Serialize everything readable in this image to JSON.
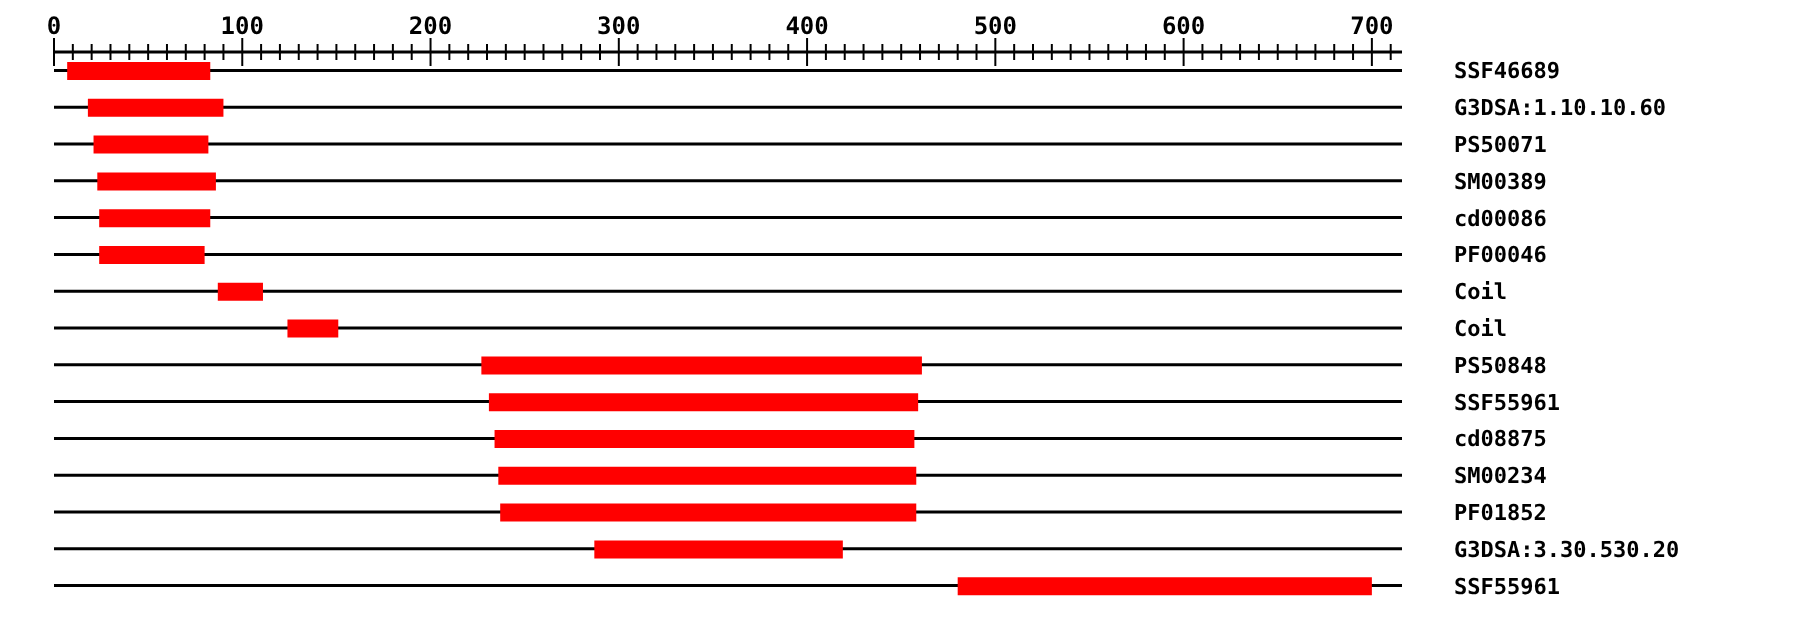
{
  "chart_data": {
    "type": "bar",
    "orientation": "horizontal",
    "color": "#ff0000",
    "grid": "y",
    "categories": [
      "SSF46689",
      "G3DSA:1.10.10.60",
      "PS50071",
      "SM00389",
      "cd00086",
      "PF00046",
      "Coil",
      "Coil",
      "PS50848",
      "SSF55961",
      "cd08875",
      "SM00234",
      "PF01852",
      "G3DSA:3.30.530.20",
      "SSF55961"
    ],
    "base": [
      7,
      18,
      21,
      23,
      24,
      24,
      87,
      124,
      227,
      231,
      234,
      236,
      237,
      287,
      480
    ],
    "values": [
      76,
      72,
      61,
      63,
      59,
      56,
      24,
      27,
      234,
      228,
      223,
      222,
      221,
      132,
      220
    ],
    "xlim": [
      0,
      716
    ],
    "xticks": [
      0,
      {
        "value": 10,
        "label": null
      },
      {
        "value": 20,
        "label": null
      },
      {
        "value": 30,
        "label": null
      },
      {
        "value": 40,
        "label": null
      },
      {
        "value": 50,
        "label": null
      },
      {
        "value": 60,
        "label": null
      },
      {
        "value": 70,
        "label": null
      },
      {
        "value": 80,
        "label": null
      },
      {
        "value": 90,
        "label": null
      },
      100,
      {
        "value": 110,
        "label": null
      },
      {
        "value": 120,
        "label": null
      },
      {
        "value": 130,
        "label": null
      },
      {
        "value": 140,
        "label": null
      },
      {
        "value": 150,
        "label": null
      },
      {
        "value": 160,
        "label": null
      },
      {
        "value": 170,
        "label": null
      },
      {
        "value": 180,
        "label": null
      },
      {
        "value": 190,
        "label": null
      },
      200,
      {
        "value": 210,
        "label": null
      },
      {
        "value": 220,
        "label": null
      },
      {
        "value": 230,
        "label": null
      },
      {
        "value": 240,
        "label": null
      },
      {
        "value": 250,
        "label": null
      },
      {
        "value": 260,
        "label": null
      },
      {
        "value": 270,
        "label": null
      },
      {
        "value": 280,
        "label": null
      },
      {
        "value": 290,
        "label": null
      },
      300,
      {
        "value": 310,
        "label": null
      },
      {
        "value": 320,
        "label": null
      },
      {
        "value": 330,
        "label": null
      },
      {
        "value": 340,
        "label": null
      },
      {
        "value": 350,
        "label": null
      },
      {
        "value": 360,
        "label": null
      },
      {
        "value": 370,
        "label": null
      },
      {
        "value": 380,
        "label": null
      },
      {
        "value": 390,
        "label": null
      },
      400,
      {
        "value": 410,
        "label": null
      },
      {
        "value": 420,
        "label": null
      },
      {
        "value": 430,
        "label": null
      },
      {
        "value": 440,
        "label": null
      },
      {
        "value": 450,
        "label": null
      },
      {
        "value": 460,
        "label": null
      },
      {
        "value": 470,
        "label": null
      },
      {
        "value": 480,
        "label": null
      },
      {
        "value": 490,
        "label": null
      },
      500,
      {
        "value": 510,
        "label": null
      },
      {
        "value": 520,
        "label": null
      },
      {
        "value": 530,
        "label": null
      },
      {
        "value": 540,
        "label": null
      },
      {
        "value": 550,
        "label": null
      },
      {
        "value": 560,
        "label": null
      },
      {
        "value": 570,
        "label": null
      },
      {
        "value": 580,
        "label": null
      },
      {
        "value": 590,
        "label": null
      },
      600,
      {
        "value": 610,
        "label": null
      },
      {
        "value": 620,
        "label": null
      },
      {
        "value": 630,
        "label": null
      },
      {
        "value": 640,
        "label": null
      },
      {
        "value": 650,
        "label": null
      },
      {
        "value": 660,
        "label": null
      },
      {
        "value": 670,
        "label": null
      },
      {
        "value": 680,
        "label": null
      },
      {
        "value": 690,
        "label": null
      },
      700,
      {
        "value": 710,
        "label": null
      }
    ]
  }
}
